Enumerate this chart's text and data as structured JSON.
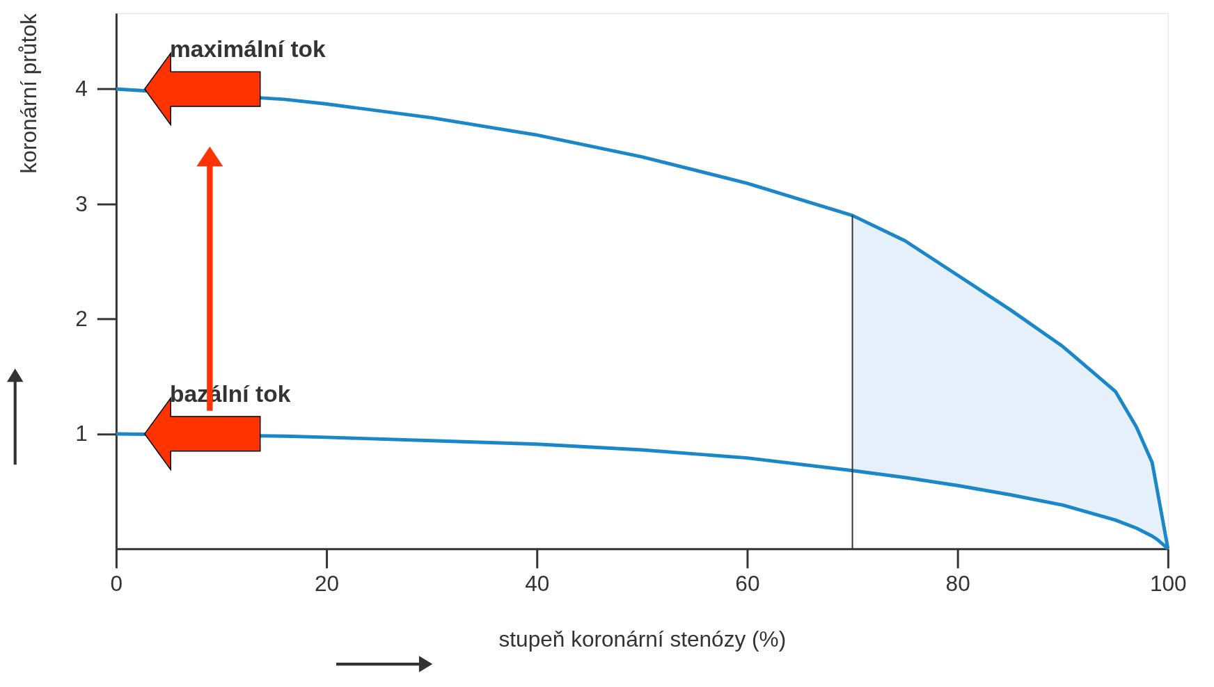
{
  "chart_data": {
    "type": "line",
    "xlabel": "stupeň koronární stenózy (%)",
    "ylabel": "koronární průtok",
    "x": [
      0,
      16,
      20,
      30,
      40,
      50,
      60,
      70,
      75,
      80,
      85,
      90,
      95,
      97,
      98.5,
      99,
      100
    ],
    "series": [
      {
        "name": "maximální tok",
        "color": "#1a87c9",
        "values": [
          4.0,
          3.91,
          3.87,
          3.75,
          3.6,
          3.41,
          3.18,
          2.9,
          2.68,
          2.38,
          2.08,
          1.76,
          1.37,
          1.06,
          0.75,
          0.5,
          0
        ]
      },
      {
        "name": "bazální tok",
        "color": "#1a87c9",
        "values": [
          1.0,
          0.98,
          0.97,
          0.94,
          0.91,
          0.86,
          0.79,
          0.68,
          0.62,
          0.55,
          0.47,
          0.38,
          0.25,
          0.18,
          0.11,
          0.08,
          0
        ]
      },
      {
        "type": "area",
        "color": "#e6f0fa",
        "x": [
          70,
          75,
          80,
          85,
          90,
          95,
          97,
          98.5,
          99,
          100
        ],
        "values": [
          2.9,
          2.68,
          2.38,
          2.08,
          1.76,
          1.37,
          1.06,
          0.75,
          0.5,
          0
        ]
      }
    ],
    "xlim": [
      0,
      100
    ],
    "xticks": [
      0,
      20,
      40,
      60,
      80,
      100
    ],
    "ylim": [
      0,
      4.66
    ],
    "yticks": [
      1,
      2,
      3,
      4
    ],
    "ref_lines": [
      {
        "axis": "x",
        "value": 70,
        "color": "#333333"
      }
    ],
    "grid": false,
    "marker": "none",
    "line_style": "solid"
  }
}
